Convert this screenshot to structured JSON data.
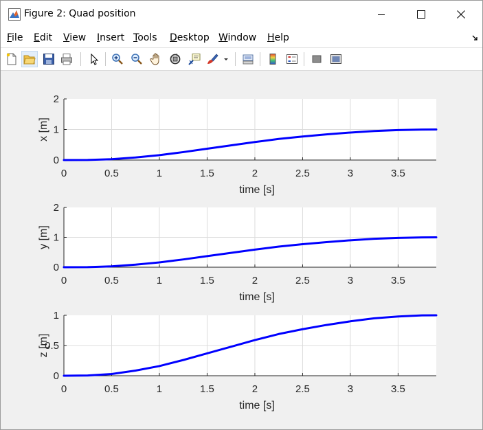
{
  "window": {
    "title": "Figure 2: Quad position"
  },
  "menu": [
    {
      "mnemonic": "F",
      "rest": "ile"
    },
    {
      "mnemonic": "E",
      "rest": "dit"
    },
    {
      "mnemonic": "V",
      "rest": "iew"
    },
    {
      "mnemonic": "I",
      "rest": "nsert"
    },
    {
      "mnemonic": "T",
      "rest": "ools"
    },
    {
      "mnemonic": "D",
      "rest": "esktop"
    },
    {
      "mnemonic": "W",
      "rest": "indow"
    },
    {
      "mnemonic": "H",
      "rest": "elp"
    }
  ],
  "toolbar": [
    "new-figure-icon",
    "open-file-icon",
    "save-icon",
    "print-icon",
    "edit-plot-arrow-icon",
    "zoom-in-icon",
    "zoom-out-icon",
    "pan-hand-icon",
    "rotate-3d-icon",
    "data-cursor-icon",
    "brush-icon",
    "brush-dropdown-icon",
    "link-plot-icon",
    "insert-colorbar-icon",
    "insert-legend-icon",
    "hide-plot-tools-icon",
    "show-plot-tools-icon"
  ],
  "colors": {
    "line": "#0000ff",
    "grid": "#dcdcdc",
    "axes_bg": "#ffffff",
    "figure_bg": "#f0f0f0"
  },
  "chart_data": [
    {
      "type": "line",
      "title": "",
      "xlabel": "time [s]",
      "ylabel": "x [m]",
      "xlim": [
        0,
        3.9
      ],
      "ylim": [
        0,
        2
      ],
      "xticks": [
        "0",
        "0.5",
        "1",
        "1.5",
        "2",
        "2.5",
        "3",
        "3.5"
      ],
      "yticks": [
        "0",
        "1",
        "2"
      ],
      "grid": true,
      "series": [
        {
          "x": [
            0,
            0.25,
            0.5,
            0.75,
            1,
            1.25,
            1.5,
            1.75,
            2,
            2.25,
            2.5,
            2.75,
            3,
            3.25,
            3.5,
            3.75,
            3.9
          ],
          "y": [
            0,
            0.004,
            0.028,
            0.085,
            0.16,
            0.26,
            0.37,
            0.48,
            0.59,
            0.69,
            0.77,
            0.84,
            0.9,
            0.95,
            0.98,
            0.998,
            1.0
          ]
        }
      ]
    },
    {
      "type": "line",
      "title": "",
      "xlabel": "time [s]",
      "ylabel": "y [m]",
      "xlim": [
        0,
        3.9
      ],
      "ylim": [
        0,
        2
      ],
      "xticks": [
        "0",
        "0.5",
        "1",
        "1.5",
        "2",
        "2.5",
        "3",
        "3.5"
      ],
      "yticks": [
        "0",
        "1",
        "2"
      ],
      "grid": true,
      "series": [
        {
          "x": [
            0,
            0.25,
            0.5,
            0.75,
            1,
            1.25,
            1.5,
            1.75,
            2,
            2.25,
            2.5,
            2.75,
            3,
            3.25,
            3.5,
            3.75,
            3.9
          ],
          "y": [
            0,
            0.004,
            0.028,
            0.085,
            0.16,
            0.26,
            0.37,
            0.48,
            0.59,
            0.69,
            0.77,
            0.84,
            0.9,
            0.95,
            0.98,
            0.998,
            1.0
          ]
        }
      ]
    },
    {
      "type": "line",
      "title": "",
      "xlabel": "time [s]",
      "ylabel": "z [m]",
      "xlim": [
        0,
        3.9
      ],
      "ylim": [
        0,
        1
      ],
      "xticks": [
        "0",
        "0.5",
        "1",
        "1.5",
        "2",
        "2.5",
        "3",
        "3.5"
      ],
      "yticks": [
        "0",
        "0.5",
        "1"
      ],
      "grid": true,
      "series": [
        {
          "x": [
            0,
            0.25,
            0.5,
            0.75,
            1,
            1.25,
            1.5,
            1.75,
            2,
            2.25,
            2.5,
            2.75,
            3,
            3.25,
            3.5,
            3.75,
            3.9
          ],
          "y": [
            0,
            0.004,
            0.028,
            0.085,
            0.16,
            0.26,
            0.37,
            0.48,
            0.59,
            0.69,
            0.77,
            0.84,
            0.9,
            0.95,
            0.98,
            0.998,
            1.0
          ]
        }
      ]
    }
  ]
}
